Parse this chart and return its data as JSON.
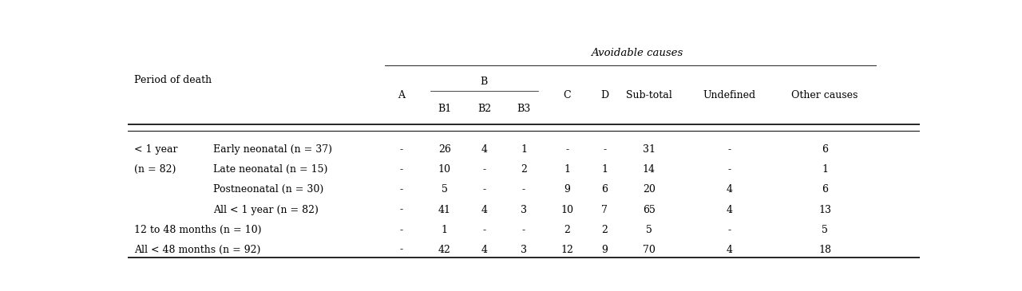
{
  "bg_color": "#ffffff",
  "col_headers": {
    "avoidable_causes": "Avoidable causes",
    "period": "Period of death",
    "A": "A",
    "B": "B",
    "B1": "B1",
    "B2": "B2",
    "B3": "B3",
    "C": "C",
    "D": "D",
    "subtotal": "Sub-total",
    "undefined": "Undefined",
    "other": "Other causes"
  },
  "col_x": {
    "group": 0.008,
    "subrow": 0.108,
    "A": 0.345,
    "B1": 0.4,
    "B2": 0.45,
    "B3": 0.5,
    "C": 0.555,
    "D": 0.602,
    "subtotal": 0.658,
    "undefined": 0.76,
    "other": 0.88
  },
  "rows": [
    {
      "group_label": "< 1 year",
      "group_label2": "(n = 82)",
      "subrow_label": "Early neonatal (n = 37)",
      "A": "-",
      "B1": "26",
      "B2": "4",
      "B3": "1",
      "C": "-",
      "D": "-",
      "subtotal": "31",
      "undefined": "-",
      "other": "6"
    },
    {
      "group_label": "",
      "group_label2": "",
      "subrow_label": "Late neonatal (n = 15)",
      "A": "-",
      "B1": "10",
      "B2": "-",
      "B3": "2",
      "C": "1",
      "D": "1",
      "subtotal": "14",
      "undefined": "-",
      "other": "1"
    },
    {
      "group_label": "",
      "group_label2": "",
      "subrow_label": "Postneonatal (n = 30)",
      "A": "-",
      "B1": "5",
      "B2": "-",
      "B3": "-",
      "C": "9",
      "D": "6",
      "subtotal": "20",
      "undefined": "4",
      "other": "6"
    },
    {
      "group_label": "",
      "group_label2": "",
      "subrow_label": "All < 1 year (n = 82)",
      "A": "-",
      "B1": "41",
      "B2": "4",
      "B3": "3",
      "C": "10",
      "D": "7",
      "subtotal": "65",
      "undefined": "4",
      "other": "13"
    },
    {
      "group_label": "12 to 48 months (n = 10)",
      "group_label2": "",
      "subrow_label": "",
      "A": "-",
      "B1": "1",
      "B2": "-",
      "B3": "-",
      "C": "2",
      "D": "2",
      "subtotal": "5",
      "undefined": "-",
      "other": "5"
    },
    {
      "group_label": "All < 48 months (n = 92)",
      "group_label2": "",
      "subrow_label": "",
      "A": "-",
      "B1": "42",
      "B2": "4",
      "B3": "3",
      "C": "12",
      "D": "9",
      "subtotal": "70",
      "undefined": "4",
      "other": "18"
    }
  ],
  "font_size": 9.0,
  "font_family": "DejaVu Serif"
}
